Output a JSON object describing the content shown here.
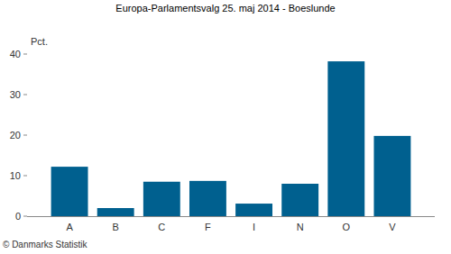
{
  "chart_data": {
    "type": "bar",
    "title": "Europa-Parlamentsvalg 25. maj 2014 - Boeslunde",
    "y_label": "Pct.",
    "source": "© Danmarks Statistik",
    "categories": [
      "A",
      "B",
      "C",
      "F",
      "I",
      "N",
      "O",
      "V"
    ],
    "values": [
      12.2,
      2.0,
      8.5,
      8.7,
      3.1,
      8.0,
      38.2,
      19.8
    ],
    "color": "#00608f",
    "ylim": [
      0,
      40
    ],
    "yticks": [
      0,
      10,
      20,
      30,
      40
    ],
    "grid": false
  }
}
